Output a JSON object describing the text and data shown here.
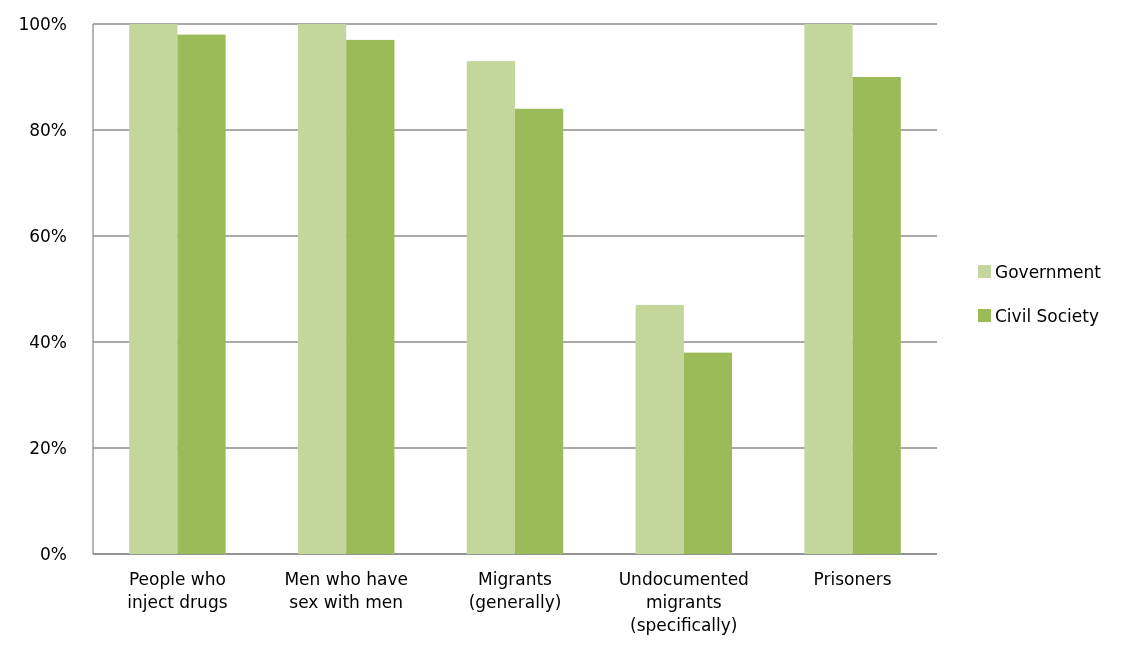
{
  "chart_data": {
    "type": "bar",
    "categories": [
      "People who inject drugs",
      "Men who have sex with men",
      "Migrants (generally)",
      "Undocumented migrants (specifically)",
      "Prisoners"
    ],
    "series": [
      {
        "name": "Government",
        "color": "#c3d69b",
        "values": [
          100,
          100,
          93,
          47,
          100
        ]
      },
      {
        "name": "Civil Society",
        "color": "#9bbb59",
        "values": [
          98,
          97,
          84,
          38,
          90
        ]
      }
    ],
    "ylim": [
      0,
      100
    ],
    "yticks": [
      {
        "value": 0,
        "label": "0%"
      },
      {
        "value": 20,
        "label": "20%"
      },
      {
        "value": 40,
        "label": "40%"
      },
      {
        "value": 60,
        "label": "60%"
      },
      {
        "value": 80,
        "label": "80%"
      },
      {
        "value": 100,
        "label": "100%"
      }
    ],
    "grid": "y",
    "legend": "right"
  }
}
